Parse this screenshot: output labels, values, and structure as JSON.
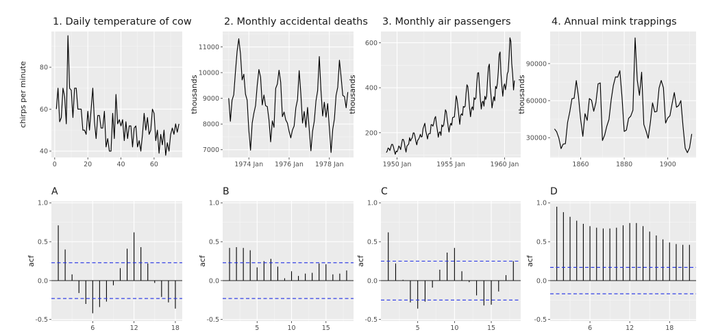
{
  "chart_data": [
    {
      "type": "line",
      "title": "1. Daily temperature of cow",
      "xlabel": "",
      "ylabel": "chirps per minute",
      "xlim": [
        -2,
        77
      ],
      "ylim": [
        37,
        97
      ],
      "xticks": [
        0,
        20,
        40,
        60
      ],
      "yticks": [
        40,
        60,
        80
      ],
      "ytick_labels": [
        "40",
        "60",
        "80"
      ],
      "values": [
        60,
        70,
        54,
        56,
        70,
        66,
        53,
        95,
        70,
        69,
        56,
        70,
        70,
        60,
        60,
        60,
        50,
        50,
        48,
        59,
        50,
        60,
        70,
        54,
        46,
        57,
        57,
        51,
        51,
        59,
        42,
        46,
        40,
        40,
        58,
        46,
        67,
        53,
        55,
        52,
        55,
        45,
        54,
        46,
        52,
        52,
        42,
        51,
        52,
        42,
        45,
        40,
        48,
        58,
        50,
        56,
        48,
        50,
        60,
        58,
        45,
        50,
        39,
        48,
        43,
        50,
        38,
        44,
        40,
        48,
        51,
        48,
        53,
        49,
        53
      ]
    },
    {
      "type": "line",
      "title": "2. Monthly accidental deaths",
      "xlabel": "",
      "ylabel": "thousands",
      "xlim": [
        1972.7,
        1979.2
      ],
      "ylim": [
        6700,
        11600
      ],
      "xticks": [
        1974,
        1976,
        1978
      ],
      "xtick_labels": [
        "1974 Jan",
        "1976 Jan",
        "1978 Jan"
      ],
      "yticks": [
        7000,
        8000,
        9000,
        10000,
        11000
      ],
      "ytick_labels": [
        "7000",
        "8000",
        "9000",
        "10000",
        "11000"
      ],
      "x_start": 1973,
      "x_step": 0.0833333,
      "values": [
        9007,
        8106,
        8928,
        9137,
        10017,
        10826,
        11317,
        10744,
        9713,
        9938,
        9161,
        8927,
        7750,
        6981,
        8038,
        8422,
        8714,
        9512,
        10120,
        9823,
        8743,
        9129,
        8710,
        8680,
        8162,
        7306,
        8124,
        7870,
        9387,
        9556,
        10093,
        9620,
        8285,
        8466,
        8160,
        8034,
        7717,
        7461,
        7767,
        7925,
        8623,
        8945,
        10078,
        9179,
        8037,
        8488,
        7874,
        8647,
        7792,
        6957,
        7726,
        8106,
        8890,
        9299,
        10625,
        9302,
        8314,
        8850,
        8265,
        8796,
        7836,
        6892,
        7791,
        8192,
        9115,
        9434,
        10484,
        9827,
        9110,
        9070,
        8633,
        9240
      ]
    },
    {
      "type": "line",
      "title": "3. Monthly air passengers",
      "xlabel": "",
      "ylabel": "thousands",
      "xlim": [
        1948.5,
        1961.5
      ],
      "ylim": [
        90,
        650
      ],
      "xticks": [
        1950,
        1955,
        1960
      ],
      "xtick_labels": [
        "1950 Jan",
        "1955 Jan",
        "1960 Jan"
      ],
      "yticks": [
        200,
        400,
        600
      ],
      "ytick_labels": [
        "200",
        "400",
        "600"
      ],
      "x_start": 1949,
      "x_step": 0.0833333,
      "values": [
        112,
        118,
        132,
        129,
        121,
        135,
        148,
        148,
        136,
        119,
        104,
        118,
        115,
        126,
        141,
        135,
        125,
        149,
        170,
        170,
        158,
        133,
        114,
        140,
        145,
        150,
        178,
        163,
        172,
        178,
        199,
        199,
        184,
        162,
        146,
        166,
        171,
        180,
        193,
        181,
        183,
        218,
        230,
        242,
        209,
        191,
        172,
        194,
        196,
        196,
        236,
        235,
        229,
        243,
        264,
        272,
        237,
        211,
        180,
        201,
        204,
        188,
        235,
        227,
        234,
        264,
        302,
        293,
        259,
        229,
        203,
        229,
        242,
        233,
        267,
        269,
        270,
        315,
        364,
        347,
        312,
        274,
        237,
        278,
        284,
        277,
        317,
        313,
        318,
        374,
        413,
        405,
        355,
        306,
        271,
        306,
        315,
        301,
        356,
        348,
        355,
        422,
        465,
        467,
        404,
        347,
        305,
        336,
        340,
        318,
        362,
        348,
        363,
        435,
        491,
        505,
        404,
        359,
        310,
        337,
        360,
        342,
        406,
        396,
        420,
        472,
        548,
        559,
        463,
        407,
        362,
        405,
        417,
        391,
        419,
        461,
        472,
        535,
        622,
        606,
        508,
        461,
        390,
        432
      ]
    },
    {
      "type": "line",
      "title": "4. Annual mink trappings",
      "xlabel": "",
      "ylabel": "thousands",
      "xlim": [
        1846,
        1913
      ],
      "ylim": [
        14000,
        116000
      ],
      "xticks": [
        1860,
        1880,
        1900
      ],
      "xtick_labels": [
        "1860",
        "1880",
        "1900"
      ],
      "yticks": [
        30000,
        60000,
        90000
      ],
      "ytick_labels": [
        "30000",
        "60000",
        "90000"
      ],
      "x_start": 1848,
      "x_step": 1,
      "values": [
        37123,
        34712,
        29619,
        21151,
        24859,
        25152,
        42375,
        50839,
        61581,
        61951,
        76231,
        63264,
        44730,
        31094,
        49452,
        43961,
        61727,
        60334,
        51404,
        58451,
        73575,
        74343,
        27708,
        31985,
        39266,
        44740,
        60429,
        72273,
        79214,
        79060,
        84244,
        62590,
        35072,
        36160,
        45600,
        47508,
        52290,
        110824,
        76503,
        64303,
        83023,
        40748,
        35596,
        29479,
        42264,
        58171,
        50815,
        51285,
        70229,
        76365,
        70407,
        41839,
        45978,
        47813,
        57620,
        66549,
        54673,
        55996,
        60053,
        39169,
        21534,
        17857,
        21788,
        33008
      ]
    },
    {
      "type": "bar",
      "title": "A",
      "xlabel": "",
      "ylabel": "acf",
      "xlim": [
        0,
        19
      ],
      "ylim": [
        -0.52,
        1.02
      ],
      "xticks": [
        6,
        12,
        18
      ],
      "yticks": [
        -0.5,
        0.0,
        0.5,
        1.0
      ],
      "ytick_labels": [
        "-0.5",
        "0.0",
        "0.5",
        "1.0"
      ],
      "lags": [
        1,
        2,
        3,
        4,
        5,
        6,
        7,
        8,
        9,
        10,
        11,
        12,
        13,
        14,
        15,
        16,
        17,
        18
      ],
      "values": [
        0.71,
        0.4,
        0.08,
        -0.16,
        -0.3,
        -0.42,
        -0.34,
        -0.27,
        -0.06,
        0.16,
        0.41,
        0.62,
        0.43,
        0.22,
        -0.03,
        -0.21,
        -0.28,
        -0.36
      ],
      "ci": 0.23
    },
    {
      "type": "bar",
      "title": "B",
      "xlabel": "",
      "ylabel": "acf",
      "xlim": [
        0,
        19
      ],
      "ylim": [
        -0.52,
        1.02
      ],
      "xticks": [
        5,
        10,
        15
      ],
      "yticks": [
        -0.5,
        0.0,
        0.5,
        1.0
      ],
      "ytick_labels": [
        "-0.5",
        "0.0",
        "0.5",
        "1.0"
      ],
      "lags": [
        1,
        2,
        3,
        4,
        5,
        6,
        7,
        8,
        9,
        10,
        11,
        12,
        13,
        14,
        15,
        16,
        17,
        18
      ],
      "values": [
        0.42,
        0.43,
        0.42,
        0.39,
        0.17,
        0.25,
        0.28,
        0.18,
        0.03,
        0.12,
        0.06,
        0.09,
        0.1,
        0.22,
        0.21,
        0.08,
        0.09,
        0.13
      ],
      "ci": 0.23
    },
    {
      "type": "bar",
      "title": "C",
      "xlabel": "",
      "ylabel": "acf",
      "xlim": [
        0,
        19
      ],
      "ylim": [
        -0.52,
        1.02
      ],
      "xticks": [
        5,
        10,
        15
      ],
      "yticks": [
        -0.5,
        0.0,
        0.5,
        1.0
      ],
      "ytick_labels": [
        "-0.5",
        "0.0",
        "0.5",
        "1.0"
      ],
      "lags": [
        1,
        2,
        3,
        4,
        5,
        6,
        7,
        8,
        9,
        10,
        11,
        12,
        13,
        14,
        15,
        16,
        17,
        18
      ],
      "values": [
        0.62,
        0.22,
        0.01,
        -0.28,
        -0.36,
        -0.27,
        -0.09,
        0.14,
        0.36,
        0.42,
        0.12,
        -0.02,
        -0.19,
        -0.32,
        -0.31,
        -0.14,
        0.07,
        0.25
      ],
      "ci": 0.25
    },
    {
      "type": "bar",
      "title": "D",
      "xlabel": "",
      "ylabel": "acf",
      "xlim": [
        0,
        22
      ],
      "ylim": [
        -0.52,
        1.02
      ],
      "xticks": [
        6,
        12,
        18
      ],
      "yticks": [
        -0.5,
        0.0,
        0.5,
        1.0
      ],
      "ytick_labels": [
        "-0.5",
        "0.0",
        "0.5",
        "1.0"
      ],
      "lags": [
        1,
        2,
        3,
        4,
        5,
        6,
        7,
        8,
        9,
        10,
        11,
        12,
        13,
        14,
        15,
        16,
        17,
        18,
        19,
        20,
        21
      ],
      "values": [
        0.95,
        0.88,
        0.82,
        0.77,
        0.73,
        0.7,
        0.68,
        0.67,
        0.67,
        0.68,
        0.71,
        0.74,
        0.74,
        0.7,
        0.63,
        0.58,
        0.53,
        0.49,
        0.47,
        0.46,
        0.46
      ],
      "ci": 0.17
    }
  ]
}
